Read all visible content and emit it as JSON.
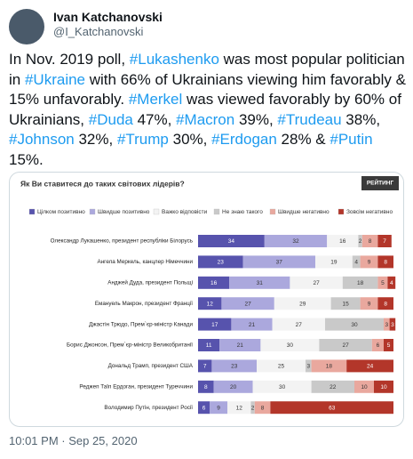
{
  "author": {
    "name": "Ivan Katchanovski",
    "handle": "@I_Katchanovski"
  },
  "text": [
    "In Nov. 2019 poll, ",
    "#Lukashenko",
    " was most popular politician in ",
    "#Ukraine",
    " with 66% of Ukrainians viewing him favorably & 15% unfavorably. ",
    "#Merkel",
    " was viewed favorably by 60% of Ukrainians, ",
    "#Duda",
    " 47%, ",
    "#Macron",
    " 39%, ",
    "#Trudeau",
    " 38%, ",
    "#Johnson",
    " 32%, ",
    "#Trump",
    " 30%, ",
    "#Erdogan",
    " 28% & ",
    "#Putin",
    " 15%."
  ],
  "timestamp": "10:01 PM · Sep 25, 2020",
  "chart_data": {
    "type": "bar",
    "orientation": "horizontal",
    "stacked": true,
    "title": "Як Ви ставитеся до таких світових лідерів?",
    "logo": "РЕЙТИНГ",
    "categories": [
      "Олександр Лукашенко, президент республіки Білорусь",
      "Ангела Меркель, канцлер Німеччини",
      "Анджей Дуда, президент Польщі",
      "Емануель Макрон, президент Франції",
      "Джастін Трюдо, Прем`єр-міністр Канади",
      "Борис Джонсон, Прем`єр-міністр Великобританії",
      "Дональд Трамп, президент США",
      "Реджеп Таїп Ердоган, президент Туреччини",
      "Володимир Путін, президент Росії"
    ],
    "series": [
      {
        "name": "Цілком позитивно",
        "color": "#5753ad",
        "values": [
          34,
          23,
          16,
          12,
          17,
          11,
          7,
          8,
          6
        ]
      },
      {
        "name": "Швидше позитивно",
        "color": "#aba8dd",
        "values": [
          32,
          37,
          31,
          27,
          21,
          21,
          23,
          20,
          9
        ]
      },
      {
        "name": "Важко відповісти",
        "color": "#f3f3f3",
        "values": [
          16,
          19,
          27,
          29,
          27,
          30,
          25,
          30,
          12
        ]
      },
      {
        "name": "Не знаю такого",
        "color": "#c9c9c9",
        "values": [
          2,
          4,
          18,
          15,
          30,
          27,
          3,
          22,
          2
        ]
      },
      {
        "name": "Швидше негативно",
        "color": "#e9a89e",
        "values": [
          8,
          9,
          5,
          9,
          3,
          6,
          18,
          10,
          8
        ]
      },
      {
        "name": "Зовсім негативно",
        "color": "#b3362a",
        "values": [
          7,
          8,
          4,
          8,
          3,
          5,
          24,
          10,
          63
        ]
      }
    ]
  }
}
